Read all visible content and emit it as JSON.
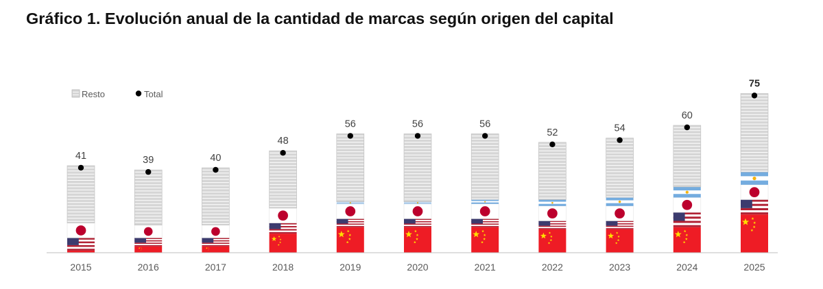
{
  "chart_data": {
    "type": "bar",
    "stacked": true,
    "title": "Gráfico 1. Evolución anual de la cantidad de marcas según origen del capital",
    "categories": [
      "2015",
      "2016",
      "2017",
      "2018",
      "2019",
      "2020",
      "2021",
      "2022",
      "2023",
      "2024",
      "2025"
    ],
    "series": [
      {
        "flag": "china",
        "values": [
          1,
          3,
          3,
          9,
          12,
          12,
          12,
          11,
          11,
          12,
          18
        ]
      },
      {
        "flag": "usa",
        "values": [
          6,
          4,
          4,
          5,
          4,
          4,
          4,
          4,
          4,
          7,
          7
        ]
      },
      {
        "flag": "japan",
        "values": [
          7,
          6,
          6,
          7,
          7,
          7,
          7,
          7,
          7,
          7,
          7
        ]
      },
      {
        "flag": "argentina",
        "values": [
          0,
          0,
          0,
          0,
          1,
          1,
          2,
          3,
          4,
          5,
          6
        ]
      },
      {
        "name": "Resto",
        "values": [
          27,
          26,
          27,
          27,
          32,
          32,
          31,
          27,
          28,
          29,
          37
        ]
      }
    ],
    "totals": {
      "name": "Total",
      "values": [
        41,
        39,
        40,
        48,
        56,
        56,
        56,
        52,
        54,
        60,
        75
      ]
    },
    "legend": {
      "position": "top-left",
      "entries": [
        "Resto",
        "Total"
      ]
    },
    "grid": false,
    "ylim": [
      0,
      80
    ],
    "colors": {
      "china": "#EE1C25",
      "china_star": "#FFDE00",
      "usa_red": "#B22234",
      "usa_blue": "#3C3B6E",
      "japan": "#BC002D",
      "argentina": "#74ACDF",
      "argentina_sun": "#F6B40E",
      "resto": "#D6D6D6",
      "total_marker": "#000000"
    }
  }
}
